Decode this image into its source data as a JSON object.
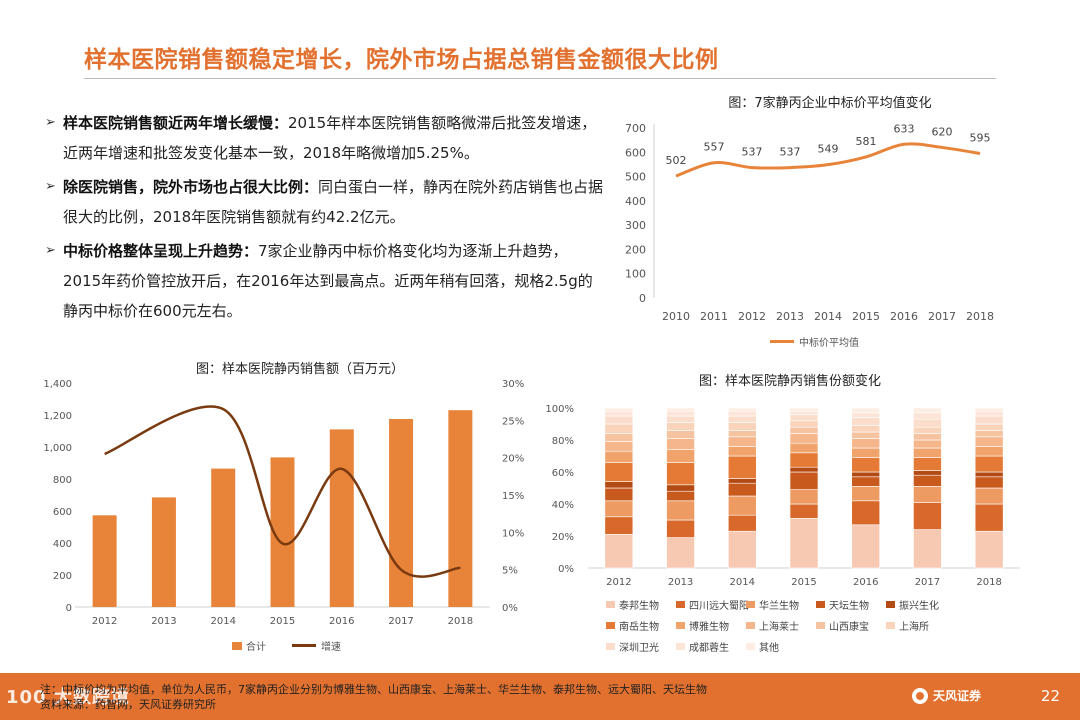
{
  "page": {
    "title": "样本医院销售额稳定增长，院外市场占据总销售金额很大比例",
    "page_number": "22"
  },
  "bullets": [
    {
      "lead": "样本医院销售额近两年增长缓慢：",
      "text": "2015年样本医院销售额略微滞后批签发增速，近两年增速和批签发变化基本一致，2018年略微增加5.25%。"
    },
    {
      "lead": "除医院销售，院外市场也占很大比例：",
      "text": "同白蛋白一样，静丙在院外药店销售也占据很大的比例，2018年医院销售额就有约42.2亿元。"
    },
    {
      "lead": "中标价格整体呈现上升趋势：",
      "text": "7家企业静丙中标价格变化均为逐渐上升趋势， 2015年药价管控放开后，在2016年达到最高点。近两年稍有回落，规格2.5g的静丙中标价在600元左右。"
    }
  ],
  "footer": {
    "note_line1": "注：中标价均为平均值，单位为人民币，7家静丙企业分别为博雅生物、山西康宝、上海莱士、华兰生物、泰邦生物、远大蜀阳、天坛生物",
    "note_line2": "资料来源：药智网，天风证券研究所",
    "watermark": "100 大数跨境",
    "brand": "天风证券"
  },
  "colors": {
    "accent": "#E2712F",
    "bar": "#E8843A",
    "line": "#7A3A10"
  },
  "chart_data": [
    {
      "id": "price",
      "type": "line",
      "title": "图：7家静丙企业中标价平均值变化",
      "categories": [
        "2010",
        "2011",
        "2012",
        "2013",
        "2014",
        "2015",
        "2016",
        "2017",
        "2018"
      ],
      "values": [
        502,
        557,
        537,
        537,
        549,
        581,
        633,
        620,
        595
      ],
      "value_labels": [
        "502",
        "557",
        "537",
        "537",
        "549",
        "581",
        "633",
        "620",
        "595"
      ],
      "ylim": [
        0,
        700
      ],
      "yticks": [
        "0",
        "100",
        "200",
        "300",
        "400",
        "500",
        "600",
        "700"
      ],
      "legend": "中标价平均值",
      "color": "#E8843A"
    },
    {
      "id": "sales",
      "type": "bar+line",
      "title": "图：样本医院静丙销售额（百万元）",
      "categories": [
        "2012",
        "2013",
        "2014",
        "2015",
        "2016",
        "2017",
        "2018"
      ],
      "bar_series": {
        "name": "合计",
        "values": [
          573,
          685,
          865,
          935,
          1110,
          1175,
          1230
        ]
      },
      "line_series": {
        "name": "增速",
        "values": [
          20.5,
          null,
          26.5,
          8.5,
          18.5,
          5,
          5.25
        ]
      },
      "ylim": [
        0,
        1400
      ],
      "yticks": [
        "0",
        "200",
        "400",
        "600",
        "800",
        "1,000",
        "1,200",
        "1,400"
      ],
      "y2lim": [
        0,
        30
      ],
      "y2ticks": [
        "0%",
        "5%",
        "10%",
        "15%",
        "20%",
        "25%",
        "30%"
      ]
    },
    {
      "id": "share",
      "type": "stacked-bar",
      "title": "图：样本医院静丙销售份额变化",
      "categories": [
        "2012",
        "2013",
        "2014",
        "2015",
        "2016",
        "2017",
        "2018"
      ],
      "ylim": [
        0,
        100
      ],
      "yticks": [
        "0%",
        "20%",
        "40%",
        "60%",
        "80%",
        "100%"
      ],
      "series": [
        {
          "name": "泰邦生物",
          "color": "#F7C9B2",
          "values": [
            21,
            19,
            23,
            31,
            27,
            24,
            23
          ]
        },
        {
          "name": "四川远大蜀阳",
          "color": "#D9692A",
          "values": [
            11,
            11,
            10,
            9,
            15,
            17,
            17
          ]
        },
        {
          "name": "华兰生物",
          "color": "#EE9B63",
          "values": [
            10,
            12,
            12,
            9,
            9,
            10,
            10
          ]
        },
        {
          "name": "天坛生物",
          "color": "#C95A1E",
          "values": [
            8,
            6,
            8,
            11,
            6,
            7,
            7
          ]
        },
        {
          "name": "振兴生化",
          "color": "#B34A14",
          "values": [
            4,
            4,
            3,
            3,
            3,
            3,
            3
          ]
        },
        {
          "name": "南岳生物",
          "color": "#E47A35",
          "values": [
            12,
            14,
            14,
            9,
            9,
            8,
            10
          ]
        },
        {
          "name": "博雅生物",
          "color": "#F0A46C",
          "values": [
            7,
            8,
            6,
            6,
            6,
            6,
            6
          ]
        },
        {
          "name": "上海莱士",
          "color": "#F4B68A",
          "values": [
            6,
            7,
            6,
            6,
            6,
            5,
            6
          ]
        },
        {
          "name": "山西康宝",
          "color": "#F6C3A0",
          "values": [
            5,
            5,
            4,
            4,
            4,
            4,
            4
          ]
        },
        {
          "name": "上海所",
          "color": "#F9D3BA",
          "values": [
            6,
            5,
            5,
            4,
            4,
            4,
            4
          ]
        },
        {
          "name": "深圳卫光",
          "color": "#FBDDCB",
          "values": [
            5,
            4,
            4,
            4,
            5,
            5,
            5
          ]
        },
        {
          "name": "成都蓉生",
          "color": "#FCE5D7",
          "values": [
            3,
            3,
            3,
            2,
            3,
            4,
            3
          ]
        },
        {
          "name": "其他",
          "color": "#FDEDE3",
          "values": [
            2,
            2,
            2,
            2,
            3,
            3,
            2
          ]
        }
      ]
    }
  ]
}
